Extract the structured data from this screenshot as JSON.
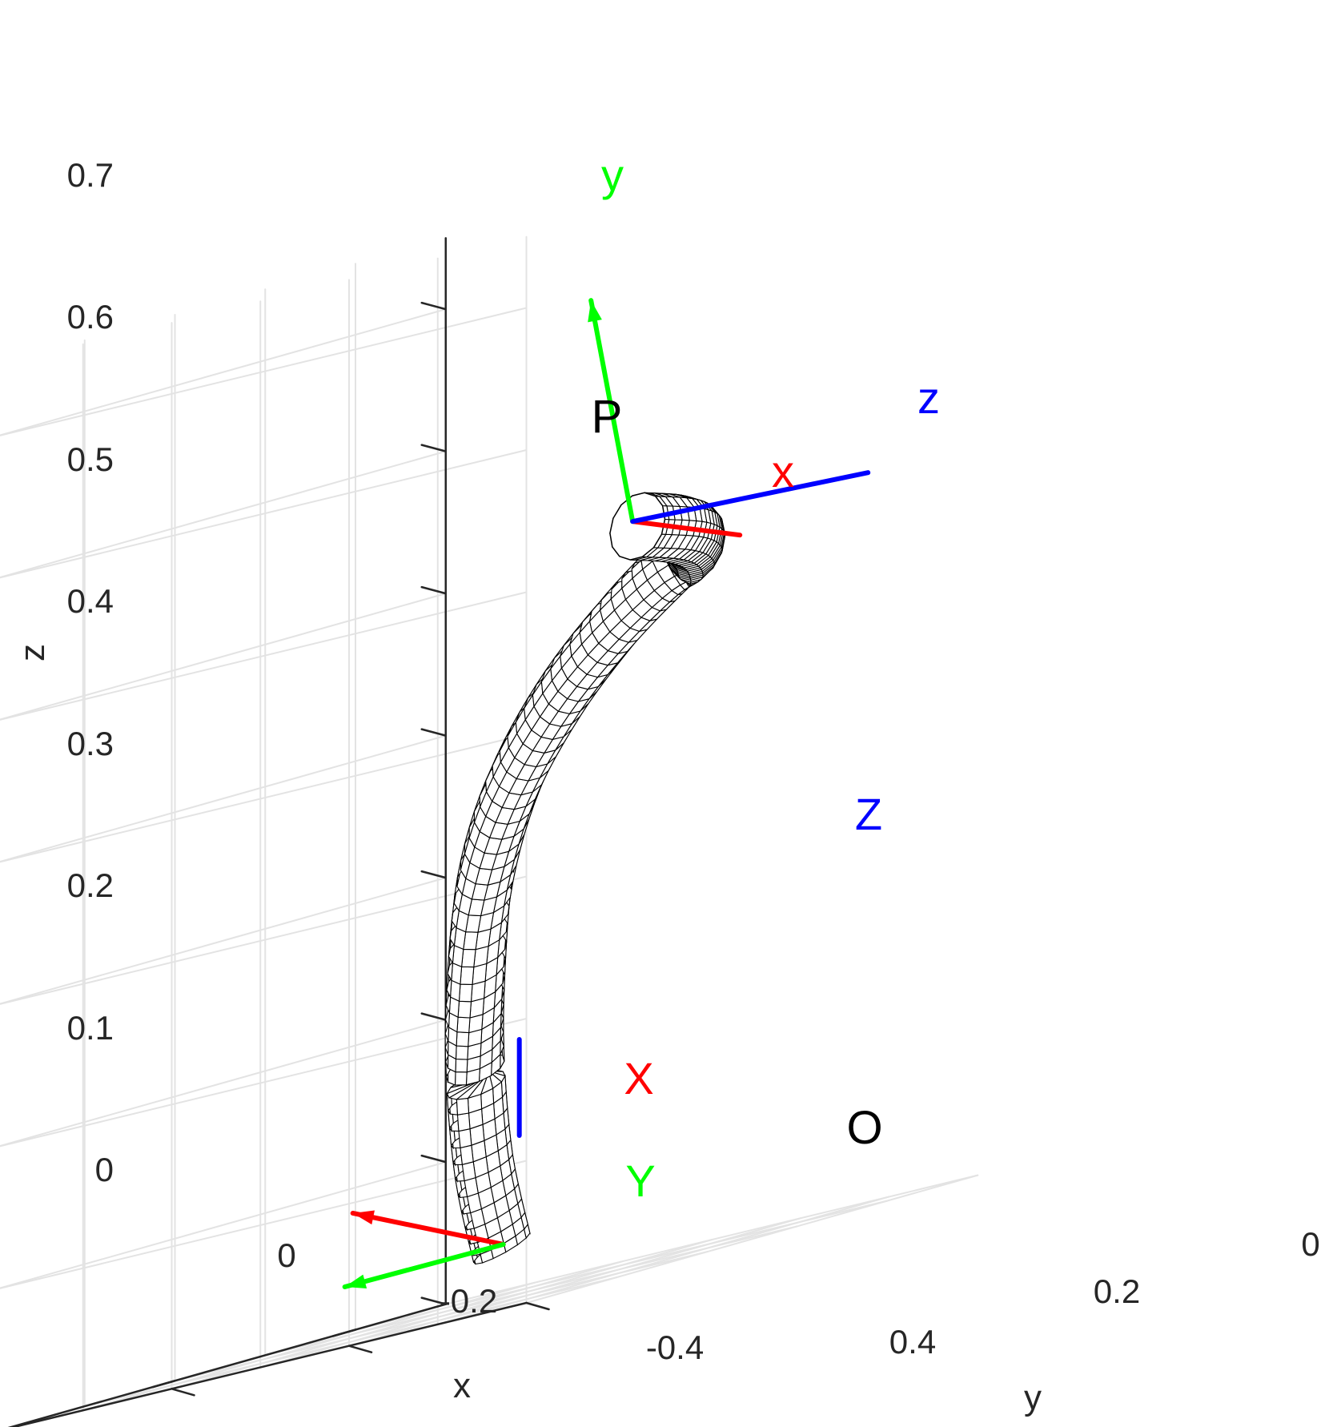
{
  "chart_data": {
    "type": "3d-line",
    "title": "",
    "xlabel": "x",
    "ylabel": "y",
    "zlabel": "z",
    "xlim": [
      -0.4,
      0.1
    ],
    "ylim": [
      0,
      0.6
    ],
    "zlim": [
      0,
      0.7
    ],
    "xticks": [
      "0",
      "-0.2",
      "-0.4"
    ],
    "yticks": [
      "0",
      "0.2",
      "0.4"
    ],
    "zticks": [
      "0",
      "0.1",
      "0.2",
      "0.3",
      "0.4",
      "0.5",
      "0.6",
      "0.7"
    ],
    "grid": true,
    "tube_centerline": {
      "x": [
        -0.28,
        -0.28,
        -0.27,
        -0.24,
        -0.2,
        -0.14,
        -0.07,
        0.0,
        0.05,
        0.06,
        0.03,
        -0.03,
        -0.11
      ],
      "y": [
        0.15,
        0.17,
        0.19,
        0.22,
        0.25,
        0.28,
        0.3,
        0.31,
        0.3,
        0.28,
        0.25,
        0.21,
        0.17
      ],
      "z": [
        0.04,
        0.1,
        0.17,
        0.23,
        0.3,
        0.36,
        0.41,
        0.45,
        0.48,
        0.49,
        0.5,
        0.51,
        0.52
      ]
    },
    "points": [
      {
        "label": "O",
        "x": -0.28,
        "y": 0.15,
        "z": 0.04
      },
      {
        "label": "P",
        "x": -0.11,
        "y": 0.17,
        "z": 0.52
      }
    ],
    "frames": [
      {
        "origin": "O",
        "axes": [
          {
            "label": "X",
            "color": "#ff0000"
          },
          {
            "label": "Y",
            "color": "#00ff00"
          },
          {
            "label": "Z",
            "color": "#0000ff"
          }
        ]
      },
      {
        "origin": "P",
        "axes": [
          {
            "label": "x",
            "color": "#ff0000"
          },
          {
            "label": "y",
            "color": "#00ff00"
          },
          {
            "label": "z",
            "color": "#0000ff"
          }
        ]
      }
    ]
  }
}
